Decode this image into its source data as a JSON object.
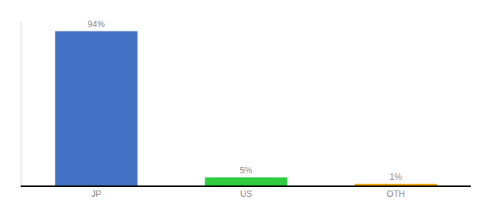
{
  "chart_data": {
    "type": "bar",
    "categories": [
      "JP",
      "US",
      "OTH"
    ],
    "values": [
      94,
      5,
      1
    ],
    "value_labels": [
      "94%",
      "5%",
      "1%"
    ],
    "colors": [
      "#4472c4",
      "#2ecc40",
      "#f0a500"
    ],
    "ylim": [
      0,
      100
    ],
    "data_labels": true,
    "tick_labels": "x",
    "grid": false
  }
}
